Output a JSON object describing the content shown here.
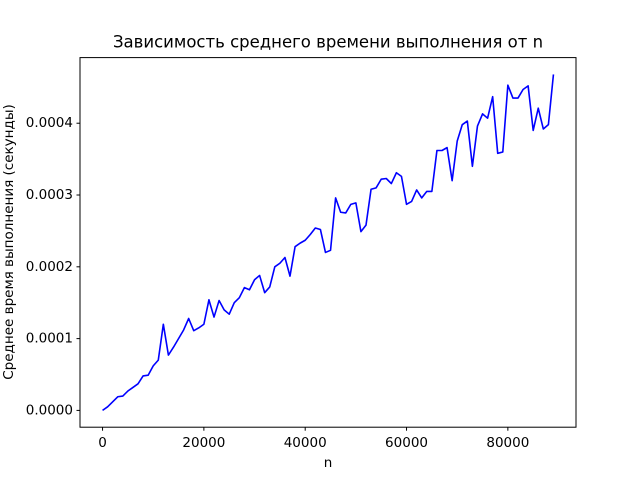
{
  "chart_data": {
    "type": "line",
    "title": "Зависимость среднего времени выполнения от n",
    "x_label": "n",
    "y_label": "Среднее время выполнения (секунды)",
    "x": [
      0,
      1000,
      2000,
      3000,
      4000,
      5000,
      6000,
      7000,
      8000,
      9000,
      10000,
      11000,
      12000,
      13000,
      14000,
      15000,
      16000,
      17000,
      18000,
      19000,
      20000,
      21000,
      22000,
      23000,
      24000,
      25000,
      26000,
      27000,
      28000,
      29000,
      30000,
      31000,
      32000,
      33000,
      34000,
      35000,
      36000,
      37000,
      38000,
      39000,
      40000,
      41000,
      42000,
      43000,
      44000,
      45000,
      46000,
      47000,
      48000,
      49000,
      50000,
      51000,
      52000,
      53000,
      54000,
      55000,
      56000,
      57000,
      58000,
      59000,
      60000,
      61000,
      62000,
      63000,
      64000,
      65000,
      66000,
      67000,
      68000,
      69000,
      70000,
      71000,
      72000,
      73000,
      74000,
      75000,
      76000,
      77000,
      78000,
      79000,
      80000,
      81000,
      82000,
      83000,
      84000,
      85000,
      86000,
      87000,
      88000,
      89000
    ],
    "series": [
      {
        "color": "#0000ff",
        "values": [
          0.0,
          5e-06,
          1.2e-05,
          1.9e-05,
          2e-05,
          2.7e-05,
          3.2e-05,
          3.7e-05,
          4.8e-05,
          4.9e-05,
          6.2e-05,
          7e-05,
          0.00012,
          7.7e-05,
          8.8e-05,
          0.0001,
          0.000112,
          0.000128,
          0.000111,
          0.000115,
          0.00012,
          0.000154,
          0.00013,
          0.000153,
          0.00014,
          0.000134,
          0.00015,
          0.000157,
          0.000171,
          0.000168,
          0.000182,
          0.000188,
          0.000164,
          0.000172,
          0.0002,
          0.000205,
          0.000213,
          0.000187,
          0.000228,
          0.000233,
          0.000237,
          0.000245,
          0.000254,
          0.000252,
          0.00022,
          0.000223,
          0.000296,
          0.000276,
          0.000275,
          0.000287,
          0.000289,
          0.000249,
          0.000258,
          0.000308,
          0.00031,
          0.000322,
          0.000323,
          0.000316,
          0.000331,
          0.000326,
          0.000287,
          0.000291,
          0.000307,
          0.000296,
          0.000305,
          0.000305,
          0.000362,
          0.000362,
          0.000366,
          0.00032,
          0.000375,
          0.000398,
          0.000403,
          0.00034,
          0.000396,
          0.000413,
          0.000407,
          0.000437,
          0.000358,
          0.00036,
          0.000453,
          0.000435,
          0.000435,
          0.000447,
          0.000452,
          0.00039,
          0.000421,
          0.000392,
          0.000398,
          0.000468
        ]
      }
    ],
    "xlim": [
      -4450,
      93450
    ],
    "ylim": [
      -2.34e-05,
      0.0004914
    ],
    "xticks": [
      0,
      20000,
      40000,
      60000,
      80000
    ],
    "yticks": [
      {
        "value": 0,
        "label": "0.0000"
      },
      {
        "value": 0.0001,
        "label": "0.0001"
      },
      {
        "value": 0.0002,
        "label": "0.0002"
      },
      {
        "value": 0.0003,
        "label": "0.0003"
      },
      {
        "value": 0.0004,
        "label": "0.0004"
      }
    ],
    "grid": false
  }
}
